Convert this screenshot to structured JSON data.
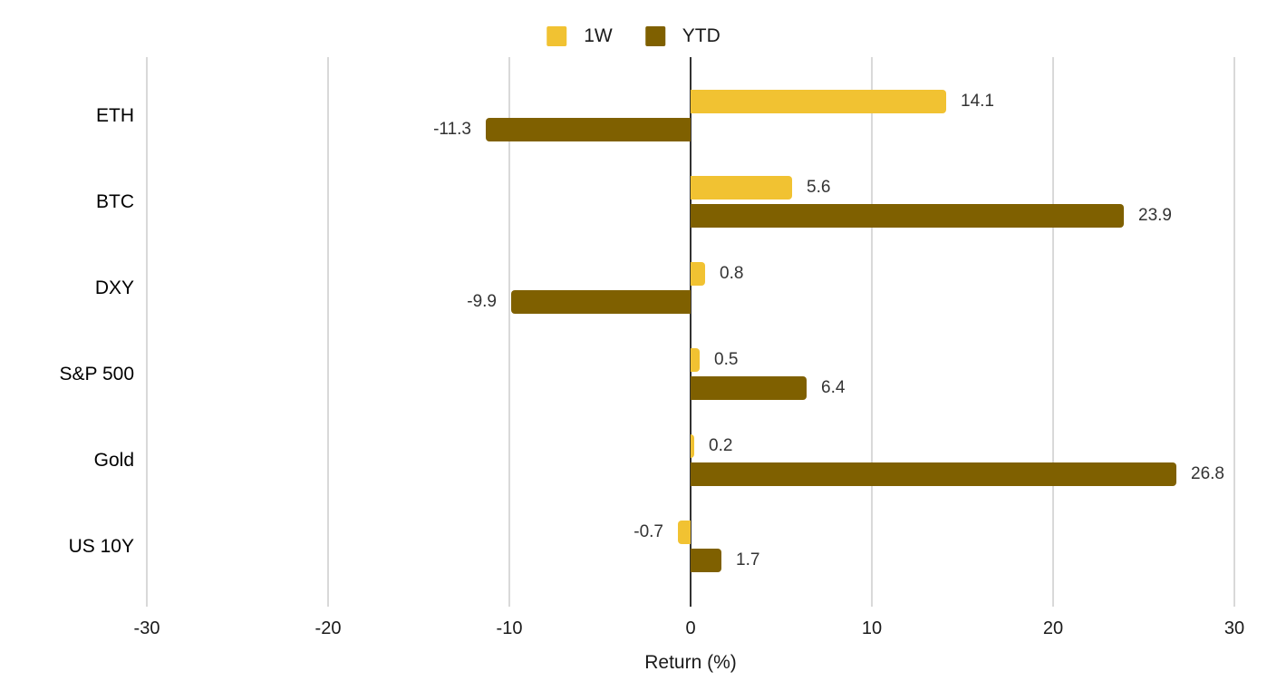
{
  "chart_data": {
    "type": "bar",
    "orientation": "horizontal",
    "title": "",
    "xlabel": "Return (%)",
    "ylabel": "",
    "categories": [
      "ETH",
      "BTC",
      "DXY",
      "S&P 500",
      "Gold",
      "US 10Y"
    ],
    "series": [
      {
        "name": "1W",
        "color": "#F1C232",
        "values": [
          14.1,
          5.6,
          0.8,
          0.5,
          0.2,
          -0.7
        ],
        "labels": [
          "14.1",
          "5.6",
          "0.8",
          "0.5",
          "0.2",
          "-0.7"
        ]
      },
      {
        "name": "YTD",
        "color": "#7F6000",
        "values": [
          -11.3,
          23.9,
          -9.9,
          6.4,
          26.8,
          1.7
        ],
        "labels": [
          "-11.3",
          "23.9",
          "-9.9",
          "6.4",
          "26.8",
          "1.7"
        ]
      }
    ],
    "x_range": [
      -30,
      30
    ],
    "x_ticks": [
      -30,
      -20,
      -10,
      0,
      10,
      20,
      30
    ],
    "x_tick_labels": [
      "-30",
      "-20",
      "-10",
      "0",
      "10",
      "20",
      "30"
    ],
    "grid": "vertical",
    "legend_position": "top-center",
    "colors": {
      "background": "#FFFFFF",
      "gridline": "#D9D9D9",
      "zero_line": "#333333",
      "text": "#1A1A1A",
      "value_label": "#333333"
    }
  }
}
